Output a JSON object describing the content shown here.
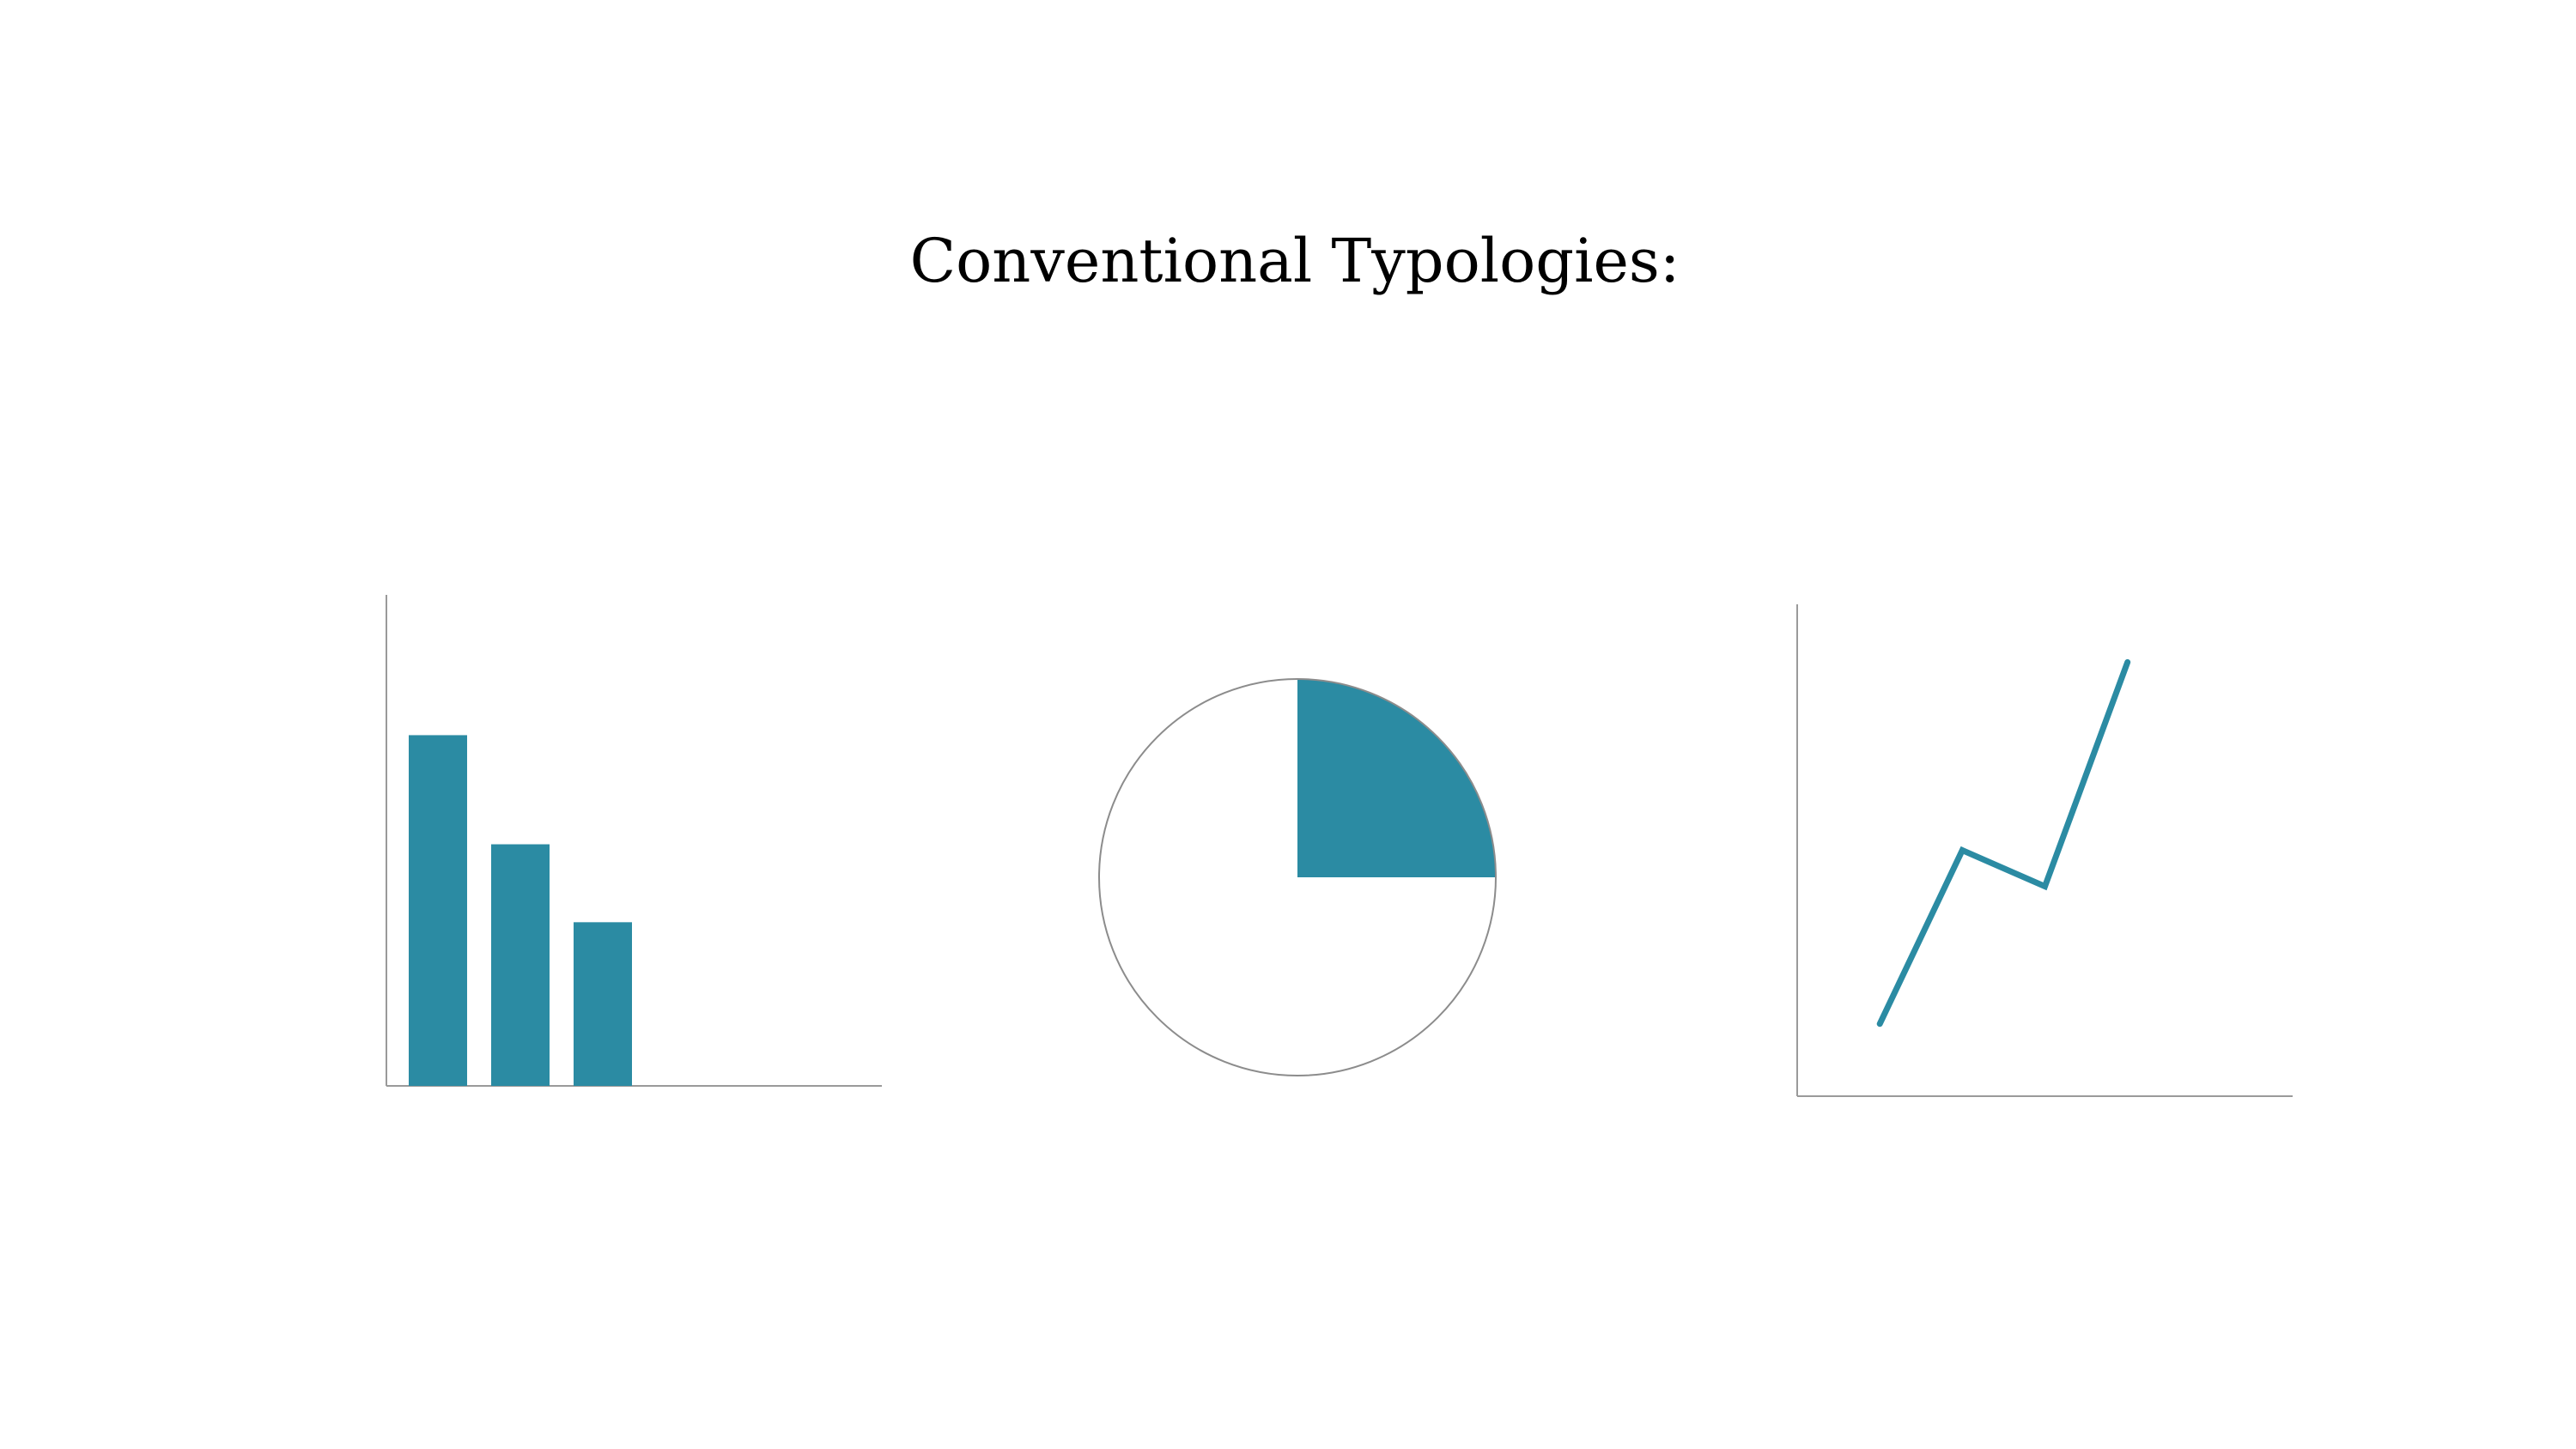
{
  "title": "Conventional Typologies:",
  "colors": {
    "accent": "#2b8ba3",
    "axis": "#9a9a9a",
    "pie_outline": "#8c8c8c",
    "background": "#ffffff"
  },
  "chart_data": [
    {
      "type": "bar",
      "values": [
        4.5,
        3.1,
        2.1
      ],
      "ylim": [
        0,
        6.3
      ],
      "title": "",
      "xlabel": "",
      "ylabel": ""
    },
    {
      "type": "pie",
      "values": [
        25,
        75
      ],
      "filled": [
        true,
        false
      ],
      "title": ""
    },
    {
      "type": "line",
      "x": [
        1,
        2,
        3,
        4
      ],
      "values": [
        1,
        3.4,
        2.9,
        6
      ],
      "xlim": [
        0,
        6
      ],
      "ylim": [
        0,
        6.8
      ],
      "title": "",
      "xlabel": "",
      "ylabel": ""
    }
  ]
}
